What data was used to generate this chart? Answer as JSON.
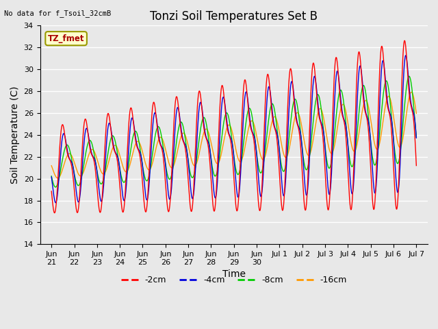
{
  "title": "Tonzi Soil Temperatures Set B",
  "ylabel": "Soil Temperature (C)",
  "xlabel": "Time",
  "no_data_text": "No data for f_Tsoil_32cmB",
  "legend_label_text": "TZ_fmet",
  "ylim": [
    14,
    34
  ],
  "yticks": [
    14,
    16,
    18,
    20,
    22,
    24,
    26,
    28,
    30,
    32,
    34
  ],
  "colors": {
    "-2cm": "#ff0000",
    "-4cm": "#0000dd",
    "-8cm": "#00cc00",
    "-16cm": "#ff9900"
  },
  "background_color": "#e8e8e8",
  "grid_color": "#ffffff",
  "title_fontsize": 12,
  "axis_label_fontsize": 10,
  "tick_fontsize": 8
}
